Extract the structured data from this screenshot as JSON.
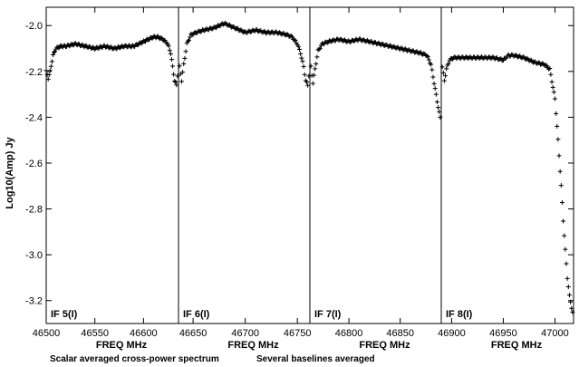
{
  "chart_data": {
    "type": "scatter",
    "ylabel": "Log10(Amp) Jy",
    "ylim": [
      -3.3,
      -1.92
    ],
    "yticks": [
      -2.0,
      -2.2,
      -2.4,
      -2.6,
      -2.8,
      -3.0,
      -3.2
    ],
    "xlabel": "FREQ MHz",
    "footer_left": "Scalar averaged cross-power spectrum",
    "footer_right": "Several baselines averaged",
    "marker": "plus",
    "color": "#000000",
    "panels": [
      {
        "label": "IF 5(I)",
        "xlim": [
          46500,
          46636
        ],
        "xticks": [
          46500,
          46550,
          46600
        ],
        "series": [
          {
            "x": [
              46500,
              46502,
              46504,
              46507,
              46510,
              46515,
              46520,
              46530,
              46540,
              46550,
              46560,
              46570,
              46580,
              46590,
              46600,
              46605,
              46610,
              46615,
              46620,
              46625,
              46628,
              46630,
              46632,
              46634,
              46635
            ],
            "y": [
              -2.2,
              -2.23,
              -2.2,
              -2.13,
              -2.1,
              -2.09,
              -2.09,
              -2.08,
              -2.09,
              -2.1,
              -2.09,
              -2.1,
              -2.09,
              -2.09,
              -2.07,
              -2.06,
              -2.05,
              -2.05,
              -2.06,
              -2.08,
              -2.12,
              -2.18,
              -2.24,
              -2.26,
              -2.22
            ]
          }
        ]
      },
      {
        "label": "IF 6(I)",
        "xlim": [
          46636,
          46762
        ],
        "xticks": [
          46650,
          46700,
          46750
        ],
        "series": [
          {
            "x": [
              46637,
              46639,
              46641,
              46644,
              46648,
              46653,
              46660,
              46670,
              46680,
              46690,
              46700,
              46710,
              46720,
              46730,
              46740,
              46745,
              46750,
              46753,
              46756,
              46758,
              46760,
              46761
            ],
            "y": [
              -2.18,
              -2.24,
              -2.17,
              -2.08,
              -2.04,
              -2.03,
              -2.02,
              -2.01,
              -1.99,
              -2.01,
              -2.03,
              -2.02,
              -2.03,
              -2.03,
              -2.04,
              -2.05,
              -2.08,
              -2.12,
              -2.18,
              -2.24,
              -2.26,
              -2.22
            ]
          }
        ]
      },
      {
        "label": "IF 7(I)",
        "xlim": [
          46762,
          46890
        ],
        "xticks": [
          46800,
          46850
        ],
        "series": [
          {
            "x": [
              46763,
              46765,
              46767,
              46770,
              46774,
              46780,
              46790,
              46800,
              46810,
              46820,
              46830,
              46840,
              46850,
              46860,
              46870,
              46876,
              46880,
              46883,
              46886,
              46888,
              46889
            ],
            "y": [
              -2.18,
              -2.25,
              -2.19,
              -2.11,
              -2.08,
              -2.07,
              -2.06,
              -2.07,
              -2.06,
              -2.07,
              -2.08,
              -2.09,
              -2.1,
              -2.11,
              -2.12,
              -2.13,
              -2.17,
              -2.25,
              -2.33,
              -2.38,
              -2.4
            ]
          }
        ]
      },
      {
        "label": "IF 8(I)",
        "xlim": [
          46890,
          47018
        ],
        "xticks": [
          46900,
          46950,
          47000
        ],
        "series": [
          {
            "x": [
              46891,
              46893,
              46895,
              46898,
              46902,
              46910,
              46920,
              46930,
              46940,
              46950,
              46955,
              46960,
              46970,
              46980,
              46990,
              46995,
              47000,
              47003,
              47006,
              47008,
              47010,
              47012,
              47014,
              47016,
              47017
            ],
            "y": [
              -2.18,
              -2.24,
              -2.19,
              -2.15,
              -2.14,
              -2.14,
              -2.14,
              -2.14,
              -2.14,
              -2.15,
              -2.13,
              -2.13,
              -2.14,
              -2.16,
              -2.17,
              -2.19,
              -2.32,
              -2.5,
              -2.7,
              -2.85,
              -2.98,
              -3.1,
              -3.18,
              -3.23,
              -3.25
            ]
          }
        ]
      }
    ]
  }
}
